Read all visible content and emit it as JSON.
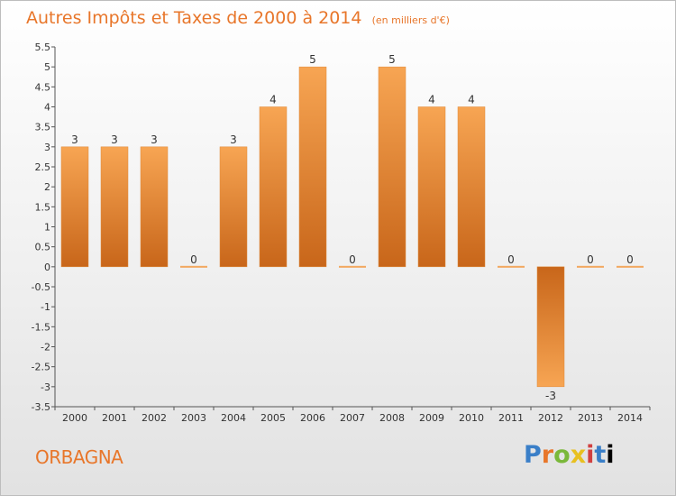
{
  "title": "Autres Impôts et Taxes de 2000 à 2014",
  "subtitle": "(en milliers d'€)",
  "commune": "ORBAGNA",
  "logo_text": "Proxiti",
  "colors": {
    "title": "#e8762a",
    "bar_light": "#f7a553",
    "bar_dark": "#c8661a",
    "axis": "#555555"
  },
  "chart_data": {
    "type": "bar",
    "title": "Autres Impôts et Taxes de 2000 à 2014",
    "subtitle": "(en milliers d'€)",
    "xlabel": "",
    "ylabel": "",
    "categories": [
      "2000",
      "2001",
      "2002",
      "2003",
      "2004",
      "2005",
      "2006",
      "2007",
      "2008",
      "2009",
      "2010",
      "2011",
      "2012",
      "2013",
      "2014"
    ],
    "values": [
      3,
      3,
      3,
      0,
      3,
      4,
      5,
      0,
      5,
      4,
      4,
      0,
      -3,
      0,
      0
    ],
    "data_labels": [
      "3",
      "3",
      "3",
      "0",
      "3",
      "4",
      "5",
      "0",
      "5",
      "4",
      "4",
      "0",
      "-3",
      "0",
      "0"
    ],
    "ylim": [
      -3.5,
      5.5
    ],
    "yticks": [
      5.5,
      5,
      4.5,
      4,
      3.5,
      3,
      2.5,
      2,
      1.5,
      1,
      0.5,
      0,
      -0.5,
      -1,
      -1.5,
      -2,
      -2.5,
      -3,
      -3.5
    ],
    "ytick_labels": [
      "5.5",
      "5",
      "4.5",
      "4",
      "3.5",
      "3",
      "2.5",
      "2",
      "1.5",
      "1",
      "0.5",
      "0",
      "-0.5",
      "-1",
      "-1.5",
      "-2",
      "-2.5",
      "-3",
      "-3.5"
    ],
    "grid": false,
    "legend": "none"
  }
}
